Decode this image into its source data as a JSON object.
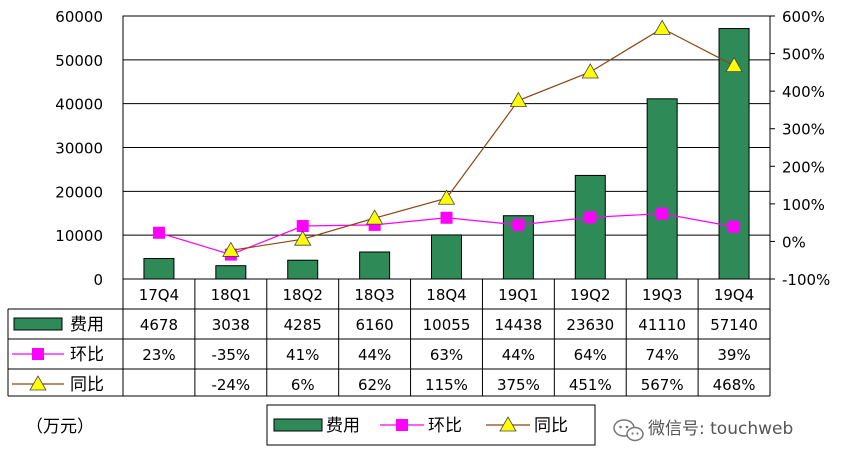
{
  "chart_data": {
    "type": "bar",
    "categories": [
      "17Q4",
      "18Q1",
      "18Q2",
      "18Q3",
      "18Q4",
      "19Q1",
      "19Q2",
      "19Q3",
      "19Q4"
    ],
    "series": [
      {
        "name": "费用",
        "kind": "bar",
        "axis": "left",
        "color": "#2e8b57",
        "values": [
          4678,
          3038,
          4285,
          6160,
          10055,
          14438,
          23630,
          41110,
          57140
        ],
        "labels": [
          "4678",
          "3038",
          "4285",
          "6160",
          "10055",
          "14438",
          "23630",
          "41110",
          "57140"
        ]
      },
      {
        "name": "环比",
        "kind": "line",
        "axis": "right",
        "color": "#ff00ff",
        "marker": "square",
        "values": [
          23,
          -35,
          41,
          44,
          63,
          44,
          64,
          74,
          39
        ],
        "labels": [
          "23%",
          "-35%",
          "41%",
          "44%",
          "63%",
          "44%",
          "64%",
          "74%",
          "39%"
        ]
      },
      {
        "name": "同比",
        "kind": "line",
        "axis": "right",
        "color": "#8b4513",
        "marker": "triangle",
        "marker_color": "#ffff00",
        "values": [
          null,
          -24,
          6,
          62,
          115,
          375,
          451,
          567,
          468
        ],
        "labels": [
          "",
          "-24%",
          "6%",
          "62%",
          "115%",
          "375%",
          "451%",
          "567%",
          "468%"
        ]
      }
    ],
    "y_left": {
      "min": 0,
      "max": 60000,
      "ticks": [
        "60000",
        "50000",
        "40000",
        "30000",
        "20000",
        "10000",
        "0"
      ]
    },
    "y_right": {
      "min": -100,
      "max": 600,
      "unit": "%",
      "ticks": [
        "600%",
        "500%",
        "400%",
        "300%",
        "200%",
        "100%",
        "0%",
        "-100%"
      ]
    },
    "unit_label": "（万元）",
    "legend": {
      "placement": "bottom",
      "items": [
        "费用",
        "环比",
        "同比"
      ]
    },
    "data_table": true,
    "grid": true,
    "watermark": "微信号: touchweb"
  }
}
